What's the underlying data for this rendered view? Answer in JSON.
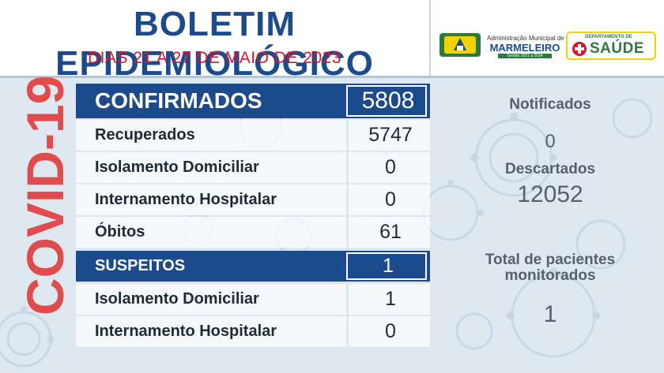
{
  "header": {
    "title": "BOLETIM EPIDEMIOLÓGICO",
    "subtitle": "DIAS 21 A 27 DE MAIO DE 2023"
  },
  "logos": {
    "municipal": {
      "line1": "Administração Municipal de",
      "line2": "MARMELEIRO",
      "line3": "Gestão 2021 a 2024"
    },
    "health": {
      "line1": "DEPARTAMENTO DE",
      "line2": "SAÚDE"
    }
  },
  "sidebar_text": "COVID-19",
  "table": {
    "confirmed": {
      "label": "CONFIRMADOS",
      "value": "5808"
    },
    "confirmed_rows": [
      {
        "label": "Recuperados",
        "value": "5747"
      },
      {
        "label": "Isolamento Domiciliar",
        "value": "0"
      },
      {
        "label": "Internamento Hospitalar",
        "value": "0"
      },
      {
        "label": "Óbitos",
        "value": "61"
      }
    ],
    "suspects": {
      "label": "SUSPEITOS",
      "value": "1"
    },
    "suspect_rows": [
      {
        "label": "Isolamento Domiciliar",
        "value": "1"
      },
      {
        "label": "Internamento Hospitalar",
        "value": "0"
      }
    ]
  },
  "side_panel": {
    "notified_label": "Notificados",
    "notified_value": "0",
    "discarded_label": "Descartados",
    "discarded_value": "12052",
    "monitored_label_1": "Total de pacientes",
    "monitored_label_2": "monitorados",
    "monitored_value": "1"
  },
  "colors": {
    "title_blue": "#1b4b8c",
    "subtitle_red": "#d4182b",
    "covid_red": "#e14b4b",
    "background": "#dde8f1"
  }
}
